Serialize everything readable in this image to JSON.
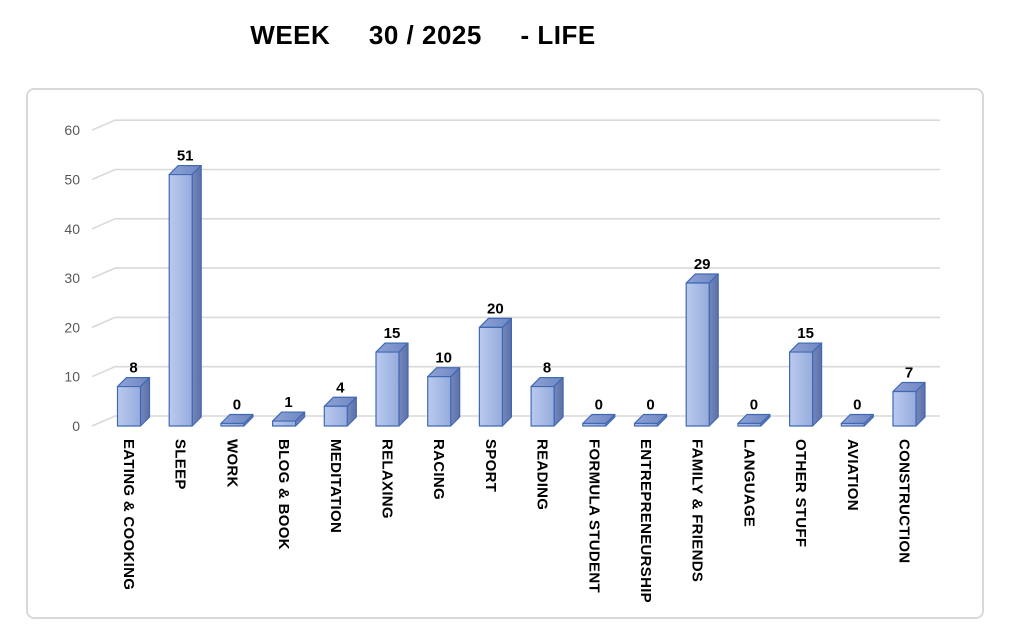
{
  "title": "WEEK     30 / 2025     - LIFE",
  "chart_data": {
    "type": "bar",
    "style": "3d-column",
    "title": "WEEK 30 / 2025 - LIFE",
    "categories": [
      "EATING & COOKING",
      "SLEEP",
      "WORK",
      "BLOG & BOOK",
      "MEDITATION",
      "RELAXING",
      "RACING",
      "SPORT",
      "READING",
      "FORMULA STUDENT",
      "ENTREPRENEURSHIP",
      "FAMILY & FRIENDS",
      "LANGUAGE",
      "OTHER STUFF",
      "AVIATION",
      "CONSTRUCTION"
    ],
    "values": [
      8,
      51,
      0,
      1,
      4,
      15,
      10,
      20,
      8,
      0,
      0,
      29,
      0,
      15,
      0,
      7
    ],
    "xlabel": "",
    "ylabel": "",
    "ylim": [
      0,
      60
    ],
    "yticks": [
      0,
      10,
      20,
      30,
      40,
      50,
      60
    ],
    "grid": true,
    "legend": false,
    "data_labels": true,
    "colors": {
      "accent": "#4472c4",
      "bar_front_light": "#bac9ee",
      "bar_front": "#aabde7",
      "bar_front_dark": "#96abdc",
      "bar_top_light": "#8fa3d6",
      "bar_top_dark": "#6e86c2",
      "bar_side_light": "#7488bd",
      "bar_side_dark": "#5d70a6",
      "outline": "#4069b4",
      "gridline": "#d9d9d9",
      "frame_border": "#d9d9d9",
      "tick_label": "#595959",
      "data_label": "#000000",
      "background": "#ffffff"
    }
  }
}
